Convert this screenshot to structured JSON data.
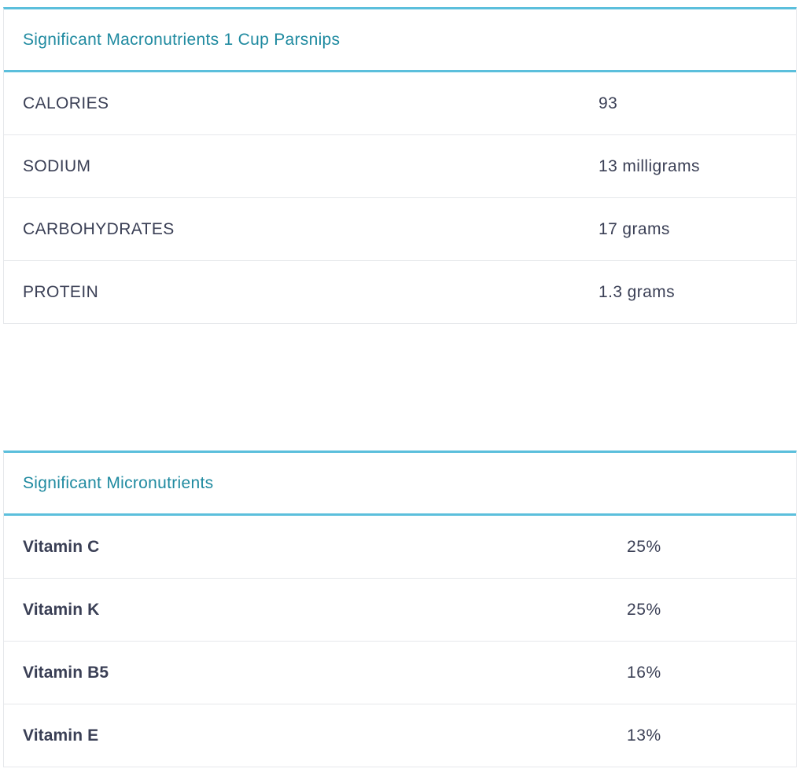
{
  "macronutrients": {
    "title": "Significant Macronutrients 1 Cup Parsnips",
    "rows": [
      {
        "label": "CALORIES",
        "value": "93"
      },
      {
        "label": "SODIUM",
        "value": "13 milligrams"
      },
      {
        "label": "CARBOHYDRATES",
        "value": "17 grams"
      },
      {
        "label": "PROTEIN",
        "value": "1.3 grams"
      }
    ]
  },
  "micronutrients": {
    "title": "Significant Micronutrients",
    "rows": [
      {
        "label": "Vitamin C",
        "value": "25%"
      },
      {
        "label": "Vitamin K",
        "value": "25%"
      },
      {
        "label": "Vitamin B5",
        "value": "16%"
      },
      {
        "label": "Vitamin E",
        "value": "13%"
      }
    ]
  },
  "colors": {
    "accent_border": "#5bbfdc",
    "title_text": "#1f8aa0",
    "body_text": "#3a3f55",
    "row_divider": "#e6e8eb"
  }
}
